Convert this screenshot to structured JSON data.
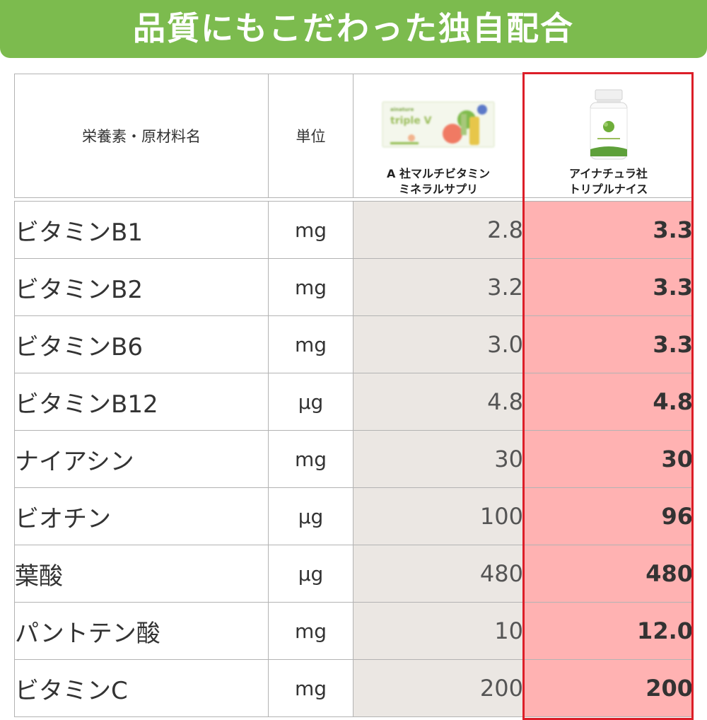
{
  "banner": {
    "title": "品質にもこだわった独自配合"
  },
  "table": {
    "headers": {
      "nutrient": "栄養素・原材料名",
      "unit": "単位",
      "product_a": [
        "A 社マルチビタミン",
        "ミネラルサプリ"
      ],
      "product_b": [
        "アイナチュラ社",
        "トリプルナイス"
      ]
    },
    "rows": [
      {
        "name": "ビタミンB1",
        "unit": "mg",
        "a": "2.8",
        "b": "3.3"
      },
      {
        "name": "ビタミンB2",
        "unit": "mg",
        "a": "3.2",
        "b": "3.3"
      },
      {
        "name": "ビタミンB6",
        "unit": "mg",
        "a": "3.0",
        "b": "3.3"
      },
      {
        "name": "ビタミンB12",
        "unit": "μg",
        "a": "4.8",
        "b": "4.8"
      },
      {
        "name": "ナイアシン",
        "unit": "mg",
        "a": "30",
        "b": "30"
      },
      {
        "name": "ビオチン",
        "unit": "μg",
        "a": "100",
        "b": "96"
      },
      {
        "name": "葉酸",
        "unit": "μg",
        "a": "480",
        "b": "480"
      },
      {
        "name": "パントテン酸",
        "unit": "mg",
        "a": "10",
        "b": "12.0"
      },
      {
        "name": "ビタミンC",
        "unit": "mg",
        "a": "200",
        "b": "200"
      }
    ]
  },
  "colors": {
    "banner": "#7cbb4e",
    "product_a_cell": "#ebe7e3",
    "product_b_cell": "#ffb2b2",
    "highlight_border": "#dc1e28"
  }
}
